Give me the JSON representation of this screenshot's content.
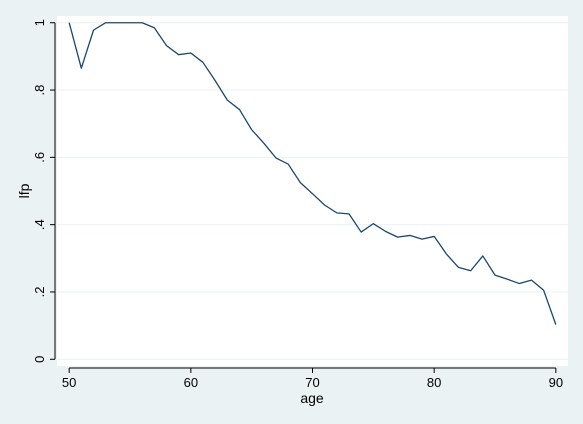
{
  "chart_data": {
    "type": "line",
    "title": "",
    "xlabel": "age",
    "ylabel": "lfp",
    "xlim": [
      49,
      91
    ],
    "ylim": [
      -0.02,
      1.02
    ],
    "xticks": [
      50,
      60,
      70,
      80,
      90
    ],
    "yticks": [
      0,
      0.2,
      0.4,
      0.6,
      0.8,
      1
    ],
    "ytick_labels": [
      "0",
      ".2",
      ".4",
      ".6",
      ".8",
      "1"
    ],
    "xtick_labels": [
      "50",
      "60",
      "70",
      "80",
      "90"
    ],
    "grid": true,
    "legend": "none",
    "colors": {
      "background": "#eaf2f3",
      "plot_area": "#ffffff",
      "line": "#1a476f",
      "grid": "#eaf2f3",
      "axis": "#000000"
    },
    "series": [
      {
        "x": [
          50,
          51,
          52,
          53,
          54,
          55,
          56,
          57,
          58,
          59,
          60,
          61,
          62,
          63,
          64,
          65,
          66,
          67,
          68,
          69,
          70,
          71,
          72,
          73,
          74,
          75,
          76,
          77,
          78,
          79,
          80,
          81,
          82,
          83,
          84,
          85,
          86,
          87,
          88,
          89,
          90
        ],
        "values": [
          1.0,
          0.865,
          0.978,
          1.0,
          1.0,
          1.0,
          1.0,
          0.985,
          0.932,
          0.905,
          0.91,
          0.882,
          0.828,
          0.77,
          0.742,
          0.682,
          0.642,
          0.598,
          0.58,
          0.525,
          0.492,
          0.458,
          0.435,
          0.432,
          0.378,
          0.403,
          0.38,
          0.363,
          0.368,
          0.357,
          0.365,
          0.313,
          0.273,
          0.263,
          0.307,
          0.25,
          0.238,
          0.225,
          0.235,
          0.205,
          0.103
        ]
      }
    ]
  }
}
